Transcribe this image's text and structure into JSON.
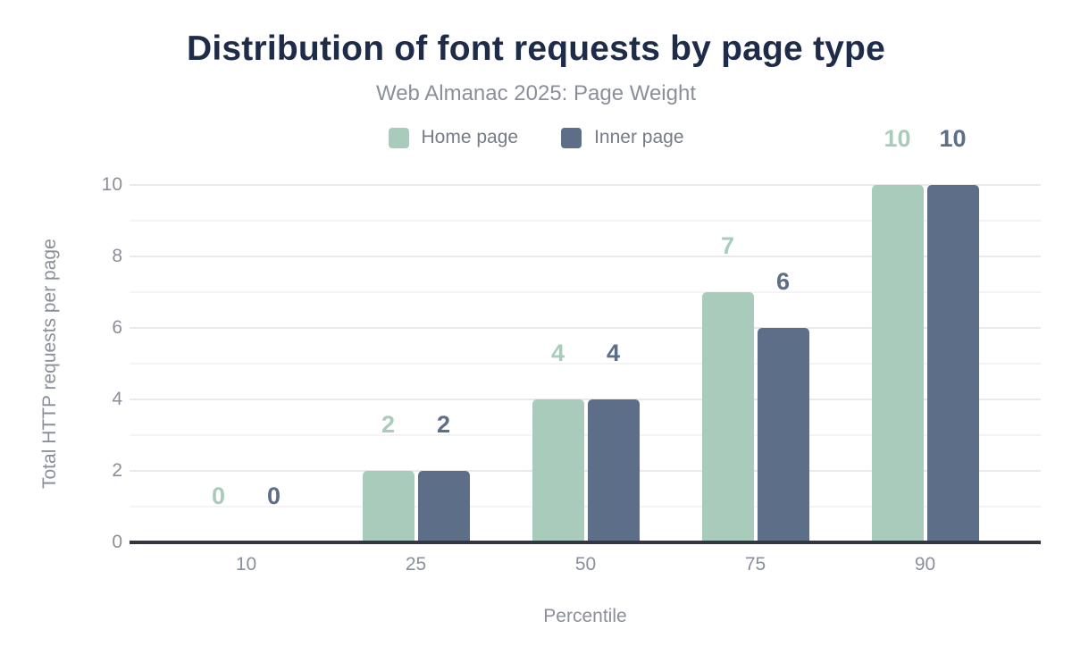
{
  "chart_data": {
    "type": "bar",
    "title": "Distribution of font requests by page type",
    "subtitle": "Web Almanac 2025: Page Weight",
    "categories": [
      "10",
      "25",
      "50",
      "75",
      "90"
    ],
    "series": [
      {
        "name": "Home page",
        "color": "#a9cbbb",
        "values": [
          0,
          2,
          4,
          7,
          10
        ]
      },
      {
        "name": "Inner page",
        "color": "#5d6e88",
        "values": [
          0,
          2,
          4,
          6,
          10
        ]
      }
    ],
    "xlabel": "Percentile",
    "ylabel": "Total HTTP requests per page",
    "ylim": [
      0,
      10
    ],
    "yticks": [
      0,
      2,
      4,
      6,
      8,
      10
    ],
    "grid": true,
    "legend_position": "top",
    "colors": {
      "title": "#1e2b49",
      "subtitle_text": "#8a8f99",
      "axis_line": "#32363f",
      "grid_major": "#e8e9ec",
      "grid_minor": "#f4f4f6",
      "background": "#ffffff"
    }
  }
}
